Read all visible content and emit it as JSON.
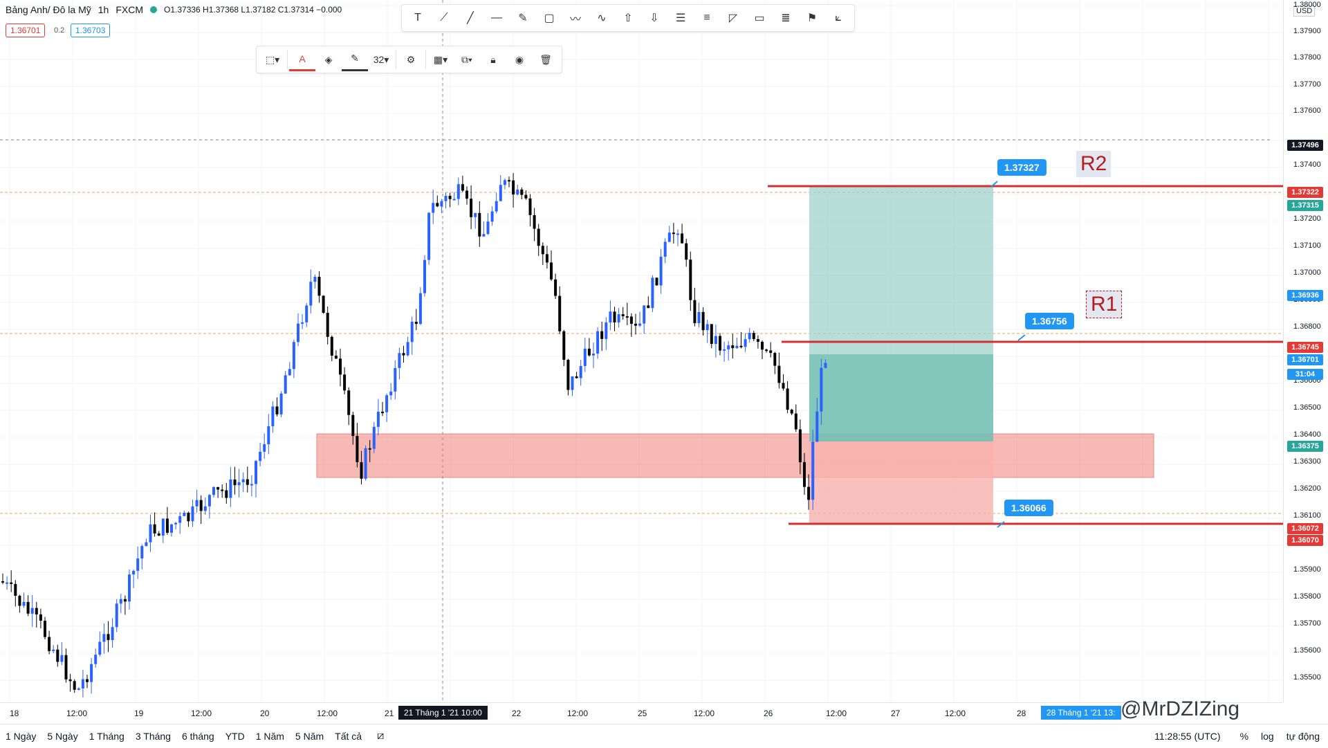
{
  "legend": {
    "symbol": "Bảng Anh/ Đô la Mỹ",
    "interval": "1h",
    "source": "FXCM",
    "ohlc": "O1.37336  H1.37368  L1.37182  C1.37314  −0.000"
  },
  "prices": {
    "sell": "1.36701",
    "spread": "0.2",
    "buy": "1.36703"
  },
  "axis": {
    "currency": "USD",
    "ticks": [
      "1.38000",
      "1.37900",
      "1.37800",
      "1.37700",
      "1.37600",
      "1.37400",
      "1.37200",
      "1.37100",
      "1.37000",
      "1.36900",
      "1.36800",
      "1.36600",
      "1.36500",
      "1.36400",
      "1.36300",
      "1.36200",
      "1.36100",
      "1.35900",
      "1.35800",
      "1.35700",
      "1.35600",
      "1.35500"
    ]
  },
  "tags": [
    {
      "label": "1.37496",
      "color": "#131722"
    },
    {
      "label": "1.37322",
      "color": "#e53935"
    },
    {
      "label": "1.37315",
      "color": "#26a69a"
    },
    {
      "label": "1.36936",
      "color": "#2196f3"
    },
    {
      "label": "1.36745",
      "color": "#e53935"
    },
    {
      "label": "1.36701",
      "color": "#2196f3"
    },
    {
      "label": "31:04",
      "color": "#2196f3"
    },
    {
      "label": "1.36375",
      "color": "#26a69a"
    },
    {
      "label": "1.36072",
      "color": "#e53935"
    },
    {
      "label": "1.36070",
      "color": "#e53935"
    }
  ],
  "callouts": {
    "top": "1.37327",
    "mid": "1.36756",
    "bot": "1.36066"
  },
  "levels": {
    "r2": "R2",
    "r1": "R1"
  },
  "drawbar": {
    "size": "32"
  },
  "time_axis": [
    "18",
    "12:00",
    "19",
    "12:00",
    "20",
    "12:00",
    "21",
    "22",
    "12:00",
    "25",
    "12:00",
    "26",
    "12:00",
    "27",
    "12:00",
    "28"
  ],
  "cursor_time": "21 Tháng 1 '21   10:00",
  "cursor_time2": "28 Tháng 1 '21   13:",
  "bottom": {
    "ranges": [
      "1 Ngày",
      "5 Ngày",
      "1 Tháng",
      "3 Tháng",
      "6 tháng",
      "YTD",
      "1 Năm",
      "5 Năm",
      "Tất cả"
    ],
    "clock": "11:28:55 (UTC)",
    "pct": "%",
    "log": "log",
    "auto": "tự động"
  },
  "watermark": "@MrDZIZing"
}
